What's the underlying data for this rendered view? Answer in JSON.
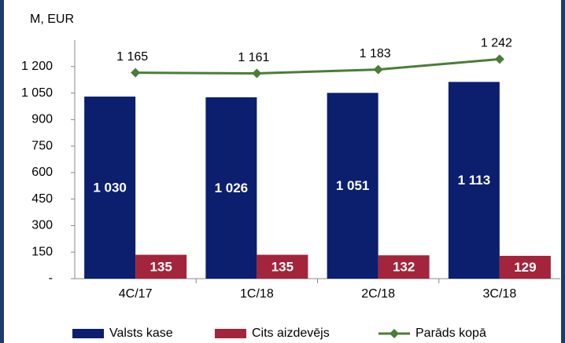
{
  "chart_data": {
    "type": "bar",
    "y_label": "M, EUR",
    "categories": [
      "4C/17",
      "1C/18",
      "2C/18",
      "3C/18"
    ],
    "series": [
      {
        "name": "Valsts kase",
        "color": "#0b1f6e",
        "values": [
          1030,
          1026,
          1051,
          1113
        ],
        "value_labels": [
          "1 030",
          "1 026",
          "1 051",
          "1 113"
        ]
      },
      {
        "name": "Cits aizdevējs",
        "color": "#a3243b",
        "values": [
          135,
          135,
          132,
          129
        ]
      },
      {
        "name": "Parāds kopā",
        "color": "#4b7d36",
        "type": "line",
        "values": [
          1165,
          1161,
          1183,
          1242
        ],
        "value_labels": [
          "1 165",
          "1 161",
          "1 183",
          "1 242"
        ]
      }
    ],
    "ylim": [
      0,
      1350
    ],
    "yticks": [
      {
        "value": 0,
        "label": "-"
      },
      150,
      300,
      450,
      600,
      750,
      900,
      {
        "value": 1050,
        "label": "1 050"
      },
      {
        "value": 1200,
        "label": "1 200"
      }
    ]
  }
}
